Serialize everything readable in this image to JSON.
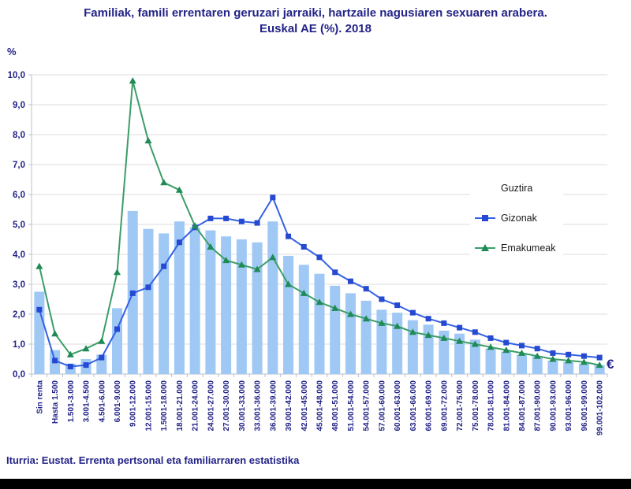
{
  "title": {
    "line1": "Familiak, famili errentaren geruzari jarraiki, hartzaile nagusiaren sexuaren arabera.",
    "line2": "Euskal AE (%). 2018"
  },
  "y_axis": {
    "unit_label": "%",
    "ticks": [
      "0,0",
      "1,0",
      "2,0",
      "3,0",
      "4,0",
      "5,0",
      "6,0",
      "7,0",
      "8,0",
      "9,0",
      "10,0"
    ]
  },
  "x_axis": {
    "euro_label": "€"
  },
  "source": "Iturria: Eustat. Errenta pertsonal eta familiarraren estatistika",
  "colors": {
    "text_navy": "#232388",
    "bar_fill": "#9fc8f5",
    "men_line": "#3461e3",
    "men_marker": "#2649d2",
    "women_line": "#3c9d68",
    "women_marker": "#1e8a55",
    "gridline": "#dcdcdc",
    "footer_band": "#000000"
  },
  "chart_data": {
    "type": "bar",
    "title": "Familiak, famili errentaren geruzari jarraiki, hartzaile nagusiaren sexuaren arabera. Euskal AE (%). 2018",
    "xlabel": "€",
    "ylabel": "%",
    "ylim": [
      0,
      10
    ],
    "grid": true,
    "legend_position": "right-middle",
    "categories": [
      "Sin renta",
      "Hasta 1.500",
      "1.501-3.000",
      "3.001-4.500",
      "4.501-6.000",
      "6.001-9.000",
      "9.001-12.000",
      "12.001-15.000",
      "1.5001-18.000",
      "18.001-21.000",
      "21.001-24.000",
      "24.001-27.000",
      "27.001-30.000",
      "30.001-33.000",
      "33.001-36.000",
      "36.001-39.000",
      "39.001-42.000",
      "42.001-45.000",
      "45.001-48.000",
      "48.001-51.000",
      "51.001-54.000",
      "54.001-57.000",
      "57.001-60.000",
      "60.001-63.000",
      "63.001-66.000",
      "66.001-69.000",
      "69.001-72.000",
      "72.001-75.000",
      "75.001-78.000",
      "78.001-81.000",
      "81.001-84.000",
      "84.001-87.000",
      "87.001-90.000",
      "90.001-93.000",
      "93.001-96.000",
      "96.001-99.000",
      "99.001-102.000"
    ],
    "series": [
      {
        "name": "Guztira",
        "render": "bar",
        "color": "#9fc8f5",
        "values": [
          2.75,
          0.8,
          0.35,
          0.5,
          0.65,
          2.2,
          5.45,
          4.85,
          4.7,
          5.1,
          4.9,
          4.8,
          4.6,
          4.5,
          4.4,
          5.1,
          3.95,
          3.65,
          3.35,
          2.95,
          2.7,
          2.45,
          2.15,
          2.05,
          1.8,
          1.65,
          1.45,
          1.35,
          1.15,
          0.85,
          0.75,
          0.65,
          0.6,
          0.45,
          0.4,
          0.35,
          0.3
        ]
      },
      {
        "name": "Gizonak",
        "render": "line",
        "marker": "square",
        "color": "#3461e3",
        "marker_color": "#2649d2",
        "values": [
          2.15,
          0.45,
          0.25,
          0.3,
          0.55,
          1.5,
          2.7,
          2.9,
          3.6,
          4.4,
          4.9,
          5.2,
          5.2,
          5.1,
          5.05,
          5.9,
          4.6,
          4.25,
          3.9,
          3.4,
          3.1,
          2.85,
          2.5,
          2.3,
          2.05,
          1.85,
          1.7,
          1.55,
          1.4,
          1.2,
          1.05,
          0.95,
          0.85,
          0.7,
          0.65,
          0.6,
          0.55
        ]
      },
      {
        "name": "Emakumeak",
        "render": "line",
        "marker": "triangle",
        "color": "#3c9d68",
        "marker_color": "#1e8a55",
        "values": [
          3.6,
          1.35,
          0.65,
          0.85,
          1.1,
          3.4,
          9.8,
          7.8,
          6.4,
          6.15,
          4.95,
          4.25,
          3.8,
          3.65,
          3.5,
          3.9,
          3.0,
          2.7,
          2.4,
          2.2,
          2.0,
          1.85,
          1.7,
          1.6,
          1.4,
          1.3,
          1.2,
          1.1,
          1.0,
          0.9,
          0.8,
          0.7,
          0.6,
          0.5,
          0.45,
          0.4,
          0.3
        ]
      }
    ]
  }
}
